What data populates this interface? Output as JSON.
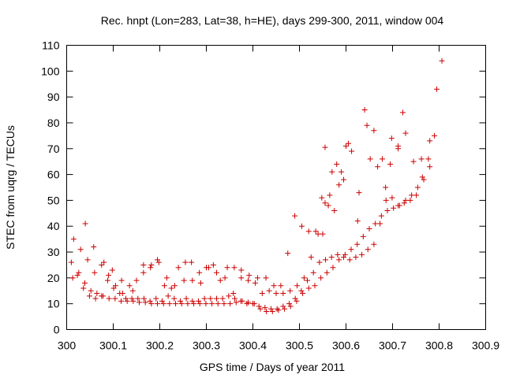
{
  "chart_data": {
    "type": "scatter",
    "title": "Rec. hnpt (Lon=283, Lat=38, h=HE), days 299-300, 2011, window 004",
    "xlabel": "GPS time / Days of year 2011",
    "ylabel": "STEC from uqrg / TECUs",
    "xlim": [
      300,
      300.9
    ],
    "ylim": [
      0,
      110
    ],
    "xticks": [
      300,
      300.1,
      300.2,
      300.3,
      300.4,
      300.5,
      300.6,
      300.7,
      300.8,
      300.9
    ],
    "xtick_labels": [
      "300",
      "300.1",
      "300.2",
      "300.3",
      "300.4",
      "300.5",
      "300.6",
      "300.7",
      "300.8",
      "300.9"
    ],
    "yticks": [
      0,
      10,
      20,
      30,
      40,
      50,
      60,
      70,
      80,
      90,
      100,
      110
    ],
    "ytick_labels": [
      "0",
      "10",
      "20",
      "30",
      "40",
      "50",
      "60",
      "70",
      "80",
      "90",
      "100",
      "110"
    ],
    "marker": "+",
    "color": "#cc0000",
    "grid": false,
    "series": [
      {
        "x": [
          300.013,
          300.026,
          300.039,
          300.052,
          300.065,
          300.078,
          300.091,
          300.104,
          300.117,
          300.13,
          300.143,
          300.156,
          300.169,
          300.182,
          300.195,
          300.208,
          300.221,
          300.234,
          300.247,
          300.26,
          300.273,
          300.286,
          300.299,
          300.312,
          300.325,
          300.338,
          300.351,
          300.364,
          300.377,
          300.39,
          300.403,
          300.416,
          300.429,
          300.442,
          300.455,
          300.468,
          300.481,
          300.494,
          300.507,
          300.52,
          300.533,
          300.546,
          300.559,
          300.572,
          300.585,
          300.598,
          300.611,
          300.624,
          300.637,
          300.65,
          300.663,
          300.676,
          300.689,
          300.702,
          300.715,
          300.728,
          300.741,
          300.754,
          300.767,
          300.78
        ],
        "y": [
          20,
          22,
          18,
          15,
          14,
          13,
          12,
          12,
          11,
          11,
          11,
          10.5,
          10.5,
          10,
          10,
          10,
          10,
          10,
          10,
          10,
          10,
          10,
          10,
          10,
          10,
          10,
          10,
          10.5,
          11,
          10.5,
          10,
          8,
          7,
          7,
          7.5,
          8,
          9,
          11,
          14,
          16,
          17,
          20,
          22,
          24,
          27,
          29,
          31,
          33,
          36,
          39,
          41,
          44,
          46,
          47,
          48,
          50,
          52,
          55,
          58,
          63
        ]
      },
      {
        "x": [
          300.01,
          300.023,
          300.036,
          300.049,
          300.062,
          300.075,
          300.088,
          300.101,
          300.114,
          300.127,
          300.14,
          300.153,
          300.166,
          300.179,
          300.192,
          300.205,
          300.218,
          300.231,
          300.244,
          300.257,
          300.27,
          300.283,
          300.296,
          300.309,
          300.322,
          300.335,
          300.348,
          300.361,
          300.374,
          300.387,
          300.4,
          300.413,
          300.426,
          300.439,
          300.452,
          300.465,
          300.478,
          300.491,
          300.504,
          300.517,
          300.53,
          300.543,
          300.556,
          300.569,
          300.582,
          300.595,
          300.608,
          300.621,
          300.634,
          300.647,
          300.66,
          300.673,
          300.686,
          300.699,
          300.712,
          300.725,
          300.738,
          300.751,
          300.764,
          300.777,
          300.79
        ],
        "y": [
          26,
          21,
          16,
          13,
          12,
          13,
          19,
          16,
          14,
          12,
          12,
          12,
          12,
          11,
          12,
          11,
          13,
          12,
          11,
          12,
          11,
          11,
          12,
          12,
          12,
          12,
          13,
          12,
          11,
          10,
          10,
          9,
          8.5,
          8,
          8,
          9,
          10,
          12,
          15,
          19,
          22,
          26,
          27,
          28,
          29,
          28,
          27,
          28,
          29,
          31,
          33,
          41,
          50,
          51,
          48,
          49,
          50,
          52,
          59,
          66,
          75
        ]
      },
      {
        "x": [
          300.015,
          300.03,
          300.045,
          300.06,
          300.075,
          300.09,
          300.105,
          300.12,
          300.135,
          300.15,
          300.165,
          300.18,
          300.195,
          300.21,
          300.225,
          300.24,
          300.255,
          300.27,
          300.285,
          300.3,
          300.315,
          300.33,
          300.345,
          300.36,
          300.375,
          300.39,
          300.405,
          300.42,
          300.435,
          300.45,
          300.465,
          300.48,
          300.495,
          300.51,
          300.525,
          300.54,
          300.555,
          300.57,
          300.585,
          300.6
        ],
        "y": [
          35,
          31,
          27,
          22,
          25,
          21,
          17,
          14,
          17,
          19,
          22,
          24,
          27,
          17,
          16,
          24,
          26,
          19,
          22,
          24,
          25,
          19,
          24,
          24,
          20,
          19,
          18,
          14,
          15,
          14,
          14,
          15,
          17,
          20,
          28,
          37,
          49,
          61,
          56,
          71
        ]
      },
      {
        "x": [
          300.04,
          300.058,
          300.08,
          300.098,
          300.118,
          300.142,
          300.165,
          300.182,
          300.198,
          300.215,
          300.232,
          300.252,
          300.268,
          300.288,
          300.305,
          300.322,
          300.34,
          300.358,
          300.375,
          300.392,
          300.41,
          300.428,
          300.445,
          300.46,
          300.475,
          300.49,
          300.505,
          300.52,
          300.535,
          300.55,
          300.565,
          300.58,
          300.595,
          300.612,
          300.628,
          300.645,
          300.66,
          300.678,
          300.695,
          300.712,
          300.728,
          300.745,
          300.762,
          300.78,
          300.795,
          300.806
        ],
        "y": [
          41,
          32,
          26,
          23,
          19,
          15,
          25,
          25,
          26,
          20,
          17,
          19,
          26,
          18,
          24,
          22,
          20,
          14,
          23,
          21,
          20,
          20,
          17,
          17,
          29.5,
          44,
          40,
          38,
          38,
          37,
          52,
          64,
          58,
          69,
          53,
          79,
          77,
          66,
          64,
          71,
          76,
          65,
          66,
          73,
          93,
          104
        ]
      },
      {
        "x": [
          300.548,
          300.555,
          300.562,
          300.575,
          300.59,
          300.605,
          300.625,
          300.64,
          300.652,
          300.668,
          300.685,
          300.698,
          300.712,
          300.722
        ],
        "y": [
          51,
          70.5,
          48,
          46,
          61,
          72,
          42,
          85,
          66,
          63,
          55,
          74,
          70,
          84
        ]
      }
    ]
  }
}
